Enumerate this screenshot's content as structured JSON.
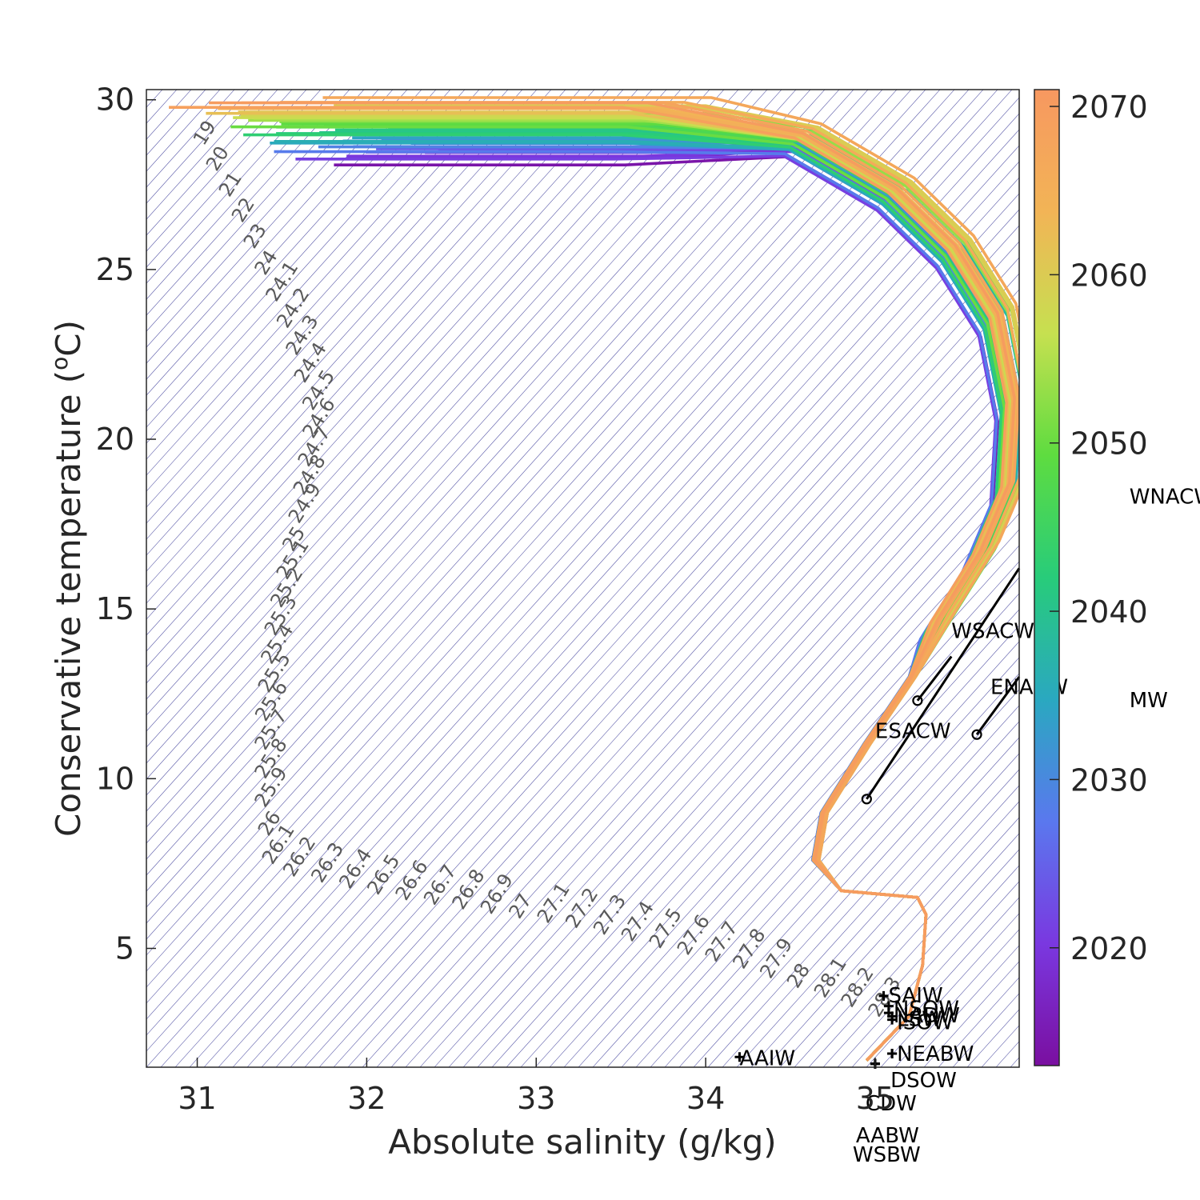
{
  "chart_data": {
    "type": "line",
    "title": "",
    "xlabel": "Absolute salinity (g/kg)",
    "ylabel": "Conservative temperature (°C)",
    "ylabel_parts": {
      "pre": "Conservative temperature (",
      "sup": "o",
      "post": "C)"
    },
    "xlim": [
      30.7,
      35.85
    ],
    "ylim": [
      1.5,
      30.3
    ],
    "xticks": [
      31,
      32,
      33,
      34,
      35
    ],
    "yticks": [
      5,
      10,
      15,
      20,
      25,
      30
    ],
    "grid": false,
    "colorbar": {
      "range": [
        2013,
        2071
      ],
      "ticks": [
        2020,
        2030,
        2040,
        2050,
        2060,
        2070
      ],
      "colormap": [
        "#7a0fa0",
        "#7a38e0",
        "#5a78ee",
        "#2aa8c0",
        "#28cc7a",
        "#5edc40",
        "#c6e050",
        "#f2b456",
        "#f79860"
      ]
    },
    "profile": {
      "year": 2070,
      "S": [
        31.6,
        33.8,
        34.6,
        35.15,
        35.5,
        35.75,
        35.85,
        35.82,
        35.65,
        35.4,
        35.22,
        34.95,
        34.7,
        34.65,
        34.8,
        35.25,
        35.3,
        35.28,
        35.2,
        34.95
      ],
      "T": [
        30.0,
        30.0,
        28.8,
        27.2,
        25.5,
        23.5,
        21.0,
        18.5,
        16.5,
        14.5,
        13.0,
        11.0,
        9.0,
        7.6,
        6.7,
        6.5,
        6.0,
        4.5,
        3.0,
        1.7
      ]
    },
    "water_masses": [
      {
        "name": "SAIW",
        "S": 35.05,
        "T": 3.6,
        "label_dx": 6,
        "label_dy": 8
      },
      {
        "name": "NSOW",
        "S": 35.08,
        "T": 3.3,
        "label_dx": 6,
        "label_dy": 12
      },
      {
        "name": "NADW",
        "S": 35.08,
        "T": 3.1,
        "label_dx": 6,
        "label_dy": 12
      },
      {
        "name": "LSW",
        "S": 35.1,
        "T": 3.0,
        "label_dx": 6,
        "label_dy": 12
      },
      {
        "name": "ISOW",
        "S": 35.1,
        "T": 2.9,
        "label_dx": 6,
        "label_dy": 12
      },
      {
        "name": "NEABW",
        "S": 35.1,
        "T": 1.9,
        "label_dx": 6,
        "label_dy": 9
      },
      {
        "name": "DSOW",
        "S": 35.1,
        "T": 1.9,
        "label_dx": -2,
        "label_dy": 42
      },
      {
        "name": "CDW",
        "S": 35.0,
        "T": 1.6,
        "label_dx": -12,
        "label_dy": 58
      },
      {
        "name": "AABW",
        "S": 35.0,
        "T": 1.6,
        "label_dx": -24,
        "label_dy": 98
      },
      {
        "name": "WSBW",
        "S": 35.0,
        "T": 1.6,
        "label_dx": -28,
        "label_dy": 122
      },
      {
        "name": "AAIW",
        "S": 34.2,
        "T": 1.8,
        "label_dx": 0,
        "label_dy": 10
      }
    ],
    "central_waters": [
      {
        "name": "ESACW",
        "S_start": 34.95,
        "T_start": 9.4,
        "S_end": 35.85,
        "T_end": 16.2,
        "label_S": 35.0,
        "label_T": 11.2
      },
      {
        "name": "WSACW",
        "S_start": 35.25,
        "T_start": 12.3,
        "S_end": 35.45,
        "T_end": 13.6,
        "label_S": 35.45,
        "label_T": 14.15
      },
      {
        "name": "ENACW",
        "S_start": 35.6,
        "T_start": 11.3,
        "S_end": 35.85,
        "T_end": 13.0,
        "label_S": 35.68,
        "label_T": 12.5
      },
      {
        "name": "WNACW",
        "label_S": 36.5,
        "label_T": 18.1
      },
      {
        "name": "MW",
        "label_S": 36.5,
        "label_T": 12.1
      }
    ],
    "density_labels": [
      "19",
      "20",
      "21",
      "22",
      "23",
      "24",
      "24.1",
      "24.2",
      "24.3",
      "24.4",
      "24.5",
      "24.6",
      "24.7",
      "24.8",
      "24.9",
      "25",
      "25.1",
      "25.2",
      "25.3",
      "25.4",
      "25.5",
      "25.6",
      "25.7",
      "25.8",
      "25.9",
      "26",
      "26.1",
      "26.2",
      "26.3",
      "26.4",
      "26.5",
      "26.6",
      "26.7",
      "26.8",
      "26.9",
      "27",
      "27.1",
      "27.2",
      "27.3",
      "27.4",
      "27.5",
      "27.6",
      "27.7",
      "27.8",
      "27.9",
      "28",
      "28.1",
      "28.2",
      "28.3"
    ]
  }
}
